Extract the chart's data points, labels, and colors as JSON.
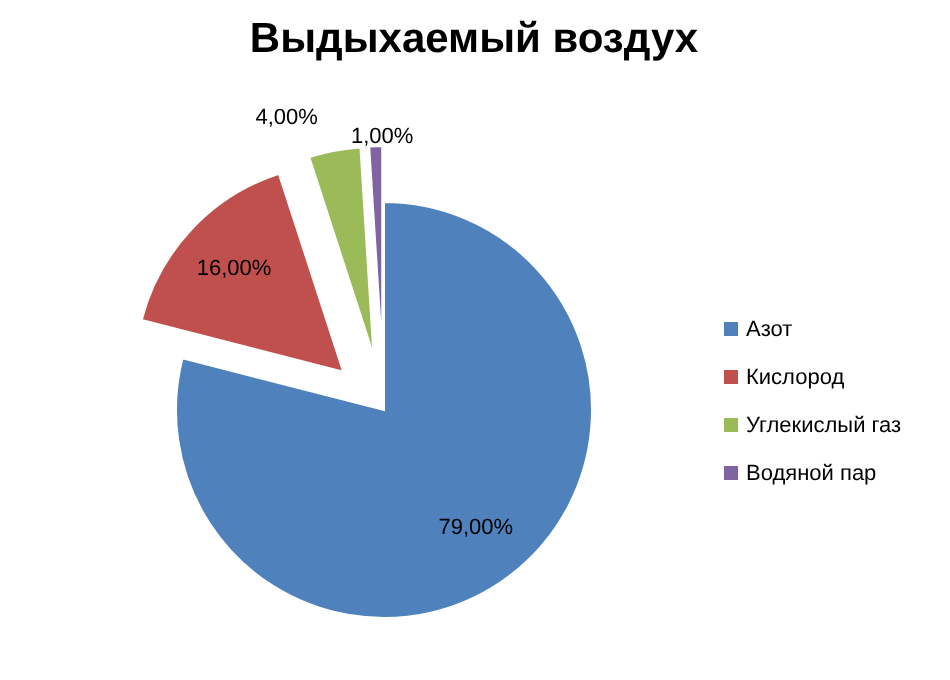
{
  "chart_data": {
    "type": "pie",
    "title": "Выдыхаемый воздух",
    "categories": [
      "Азот",
      "Кислород",
      "Углекислый газ",
      "Водяной пар"
    ],
    "values": [
      79,
      16,
      4,
      1
    ],
    "colors": [
      "#4f81bd",
      "#c0504d",
      "#9bbb59",
      "#8064a2"
    ],
    "value_labels": [
      "79,00%",
      "16,00%",
      "4,00%",
      "1,00%"
    ],
    "legend": "right"
  }
}
